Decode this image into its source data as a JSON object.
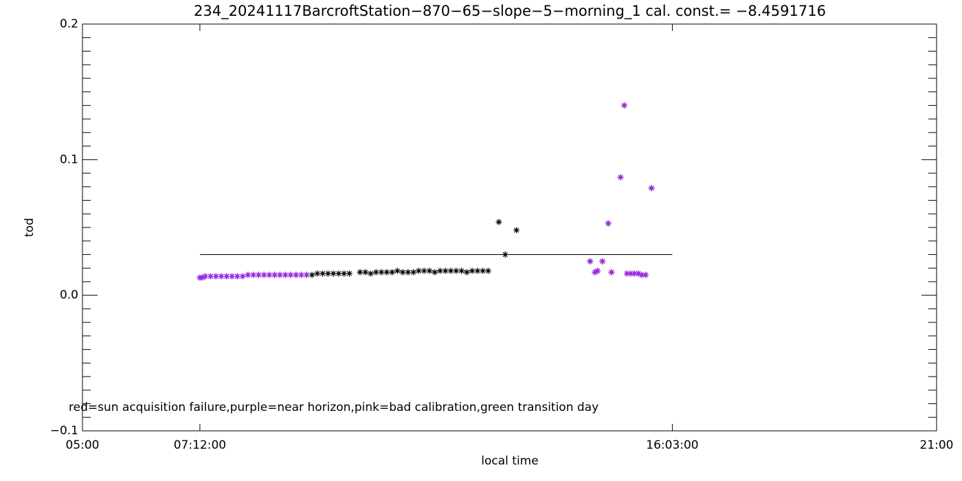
{
  "chart_data": {
    "type": "scatter",
    "title": "234_20241117BarcroftStation−870−65−slope−5−morning_1 cal. const.= −8.4591716",
    "x_label": "local time",
    "y_label": "tod",
    "annotation": "red=sun acquisition failure,purple=near horizon,pink=bad calibration,green transition day",
    "xlim": [
      5,
      21
    ],
    "ylim": [
      -0.1,
      0.2
    ],
    "xticks": [
      {
        "value": 5,
        "label": "05:00"
      },
      {
        "value": 7.2,
        "label": "07:12:00"
      },
      {
        "value": 16.05,
        "label": "16:03:00"
      },
      {
        "value": 21,
        "label": "21:00"
      }
    ],
    "yticks": [
      {
        "value": -0.1,
        "label": "−0.1"
      },
      {
        "value": 0,
        "label": "0.0"
      },
      0.1,
      0.2
    ],
    "yminor": 10,
    "reference_line": {
      "y": 0.03,
      "x": [
        7.2,
        16.05
      ],
      "color": "#000000"
    },
    "series": [
      {
        "color": "#000000",
        "x": [
          7.2,
          7.3,
          7.4,
          7.5,
          7.6,
          7.7,
          7.8,
          7.9,
          8.0,
          8.1,
          8.2,
          8.3,
          8.4,
          8.5,
          8.6,
          8.7,
          8.8,
          8.9,
          9.0,
          9.1,
          9.2,
          9.3,
          9.4,
          9.5,
          9.6,
          9.7,
          9.8,
          9.9,
          10.0,
          10.2,
          10.3,
          10.4,
          10.5,
          10.6,
          10.7,
          10.8,
          10.9,
          11.0,
          11.1,
          11.2,
          11.3,
          11.4,
          11.5,
          11.6,
          11.7,
          11.8,
          11.9,
          12.0,
          12.1,
          12.2,
          12.3,
          12.4,
          12.5,
          12.6,
          12.8,
          12.92,
          13.13,
          14.51,
          14.6,
          14.65,
          14.74,
          14.85,
          14.91,
          15.08,
          15.15,
          15.2,
          15.27,
          15.34,
          15.41,
          15.48,
          15.55,
          15.66
        ],
        "values": [
          0.013,
          0.014,
          0.014,
          0.014,
          0.014,
          0.014,
          0.014,
          0.014,
          0.014,
          0.015,
          0.015,
          0.015,
          0.015,
          0.015,
          0.015,
          0.015,
          0.015,
          0.015,
          0.015,
          0.015,
          0.015,
          0.015,
          0.016,
          0.016,
          0.016,
          0.016,
          0.016,
          0.016,
          0.016,
          0.017,
          0.017,
          0.016,
          0.017,
          0.017,
          0.017,
          0.017,
          0.018,
          0.017,
          0.017,
          0.017,
          0.018,
          0.018,
          0.018,
          0.017,
          0.018,
          0.018,
          0.018,
          0.018,
          0.018,
          0.017,
          0.018,
          0.018,
          0.018,
          0.018,
          0.054,
          0.03,
          0.048,
          0.025,
          0.017,
          0.018,
          0.025,
          0.053,
          0.017,
          0.087,
          0.14,
          0.016,
          0.016,
          0.016,
          0.016,
          0.015,
          0.015,
          0.079
        ]
      },
      {
        "color": "#a020f0",
        "x": [
          7.2,
          7.25,
          7.3,
          7.4,
          7.5,
          7.6,
          7.7,
          7.8,
          7.9,
          8.0,
          8.1,
          8.2,
          8.3,
          8.4,
          8.5,
          8.6,
          8.7,
          8.8,
          8.9,
          9.0,
          9.1,
          9.2,
          14.51,
          14.6,
          14.65,
          14.74,
          14.85,
          14.91,
          15.08,
          15.15,
          15.2,
          15.27,
          15.34,
          15.41,
          15.48,
          15.55,
          15.66
        ],
        "values": [
          0.013,
          0.013,
          0.014,
          0.014,
          0.014,
          0.014,
          0.014,
          0.014,
          0.014,
          0.014,
          0.015,
          0.015,
          0.015,
          0.015,
          0.015,
          0.015,
          0.015,
          0.015,
          0.015,
          0.015,
          0.015,
          0.015,
          0.025,
          0.017,
          0.018,
          0.025,
          0.053,
          0.017,
          0.087,
          0.14,
          0.016,
          0.016,
          0.016,
          0.016,
          0.015,
          0.015,
          0.079
        ]
      }
    ]
  }
}
